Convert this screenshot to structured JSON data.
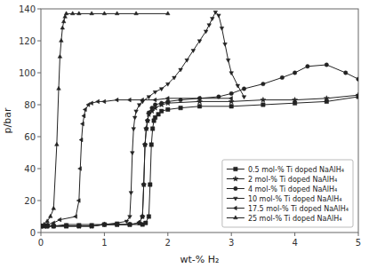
{
  "chart_data": {
    "type": "line",
    "xlabel": "wt-% H₂",
    "ylabel": "p/bar",
    "xlim": [
      0,
      5
    ],
    "ylim": [
      0,
      140
    ],
    "xticks": [
      0,
      1,
      2,
      3,
      4,
      5
    ],
    "yticks": [
      0,
      20,
      40,
      60,
      80,
      100,
      120,
      140
    ],
    "grid": false,
    "legend": "lower right",
    "series": [
      {
        "name": "0.5 mol-% Ti doped NaAlH₄",
        "marker": "square",
        "color": "#222222",
        "x": [
          0.0,
          0.05,
          0.1,
          0.2,
          0.4,
          0.6,
          0.8,
          1.0,
          1.2,
          1.4,
          1.6,
          1.65,
          1.7,
          1.72,
          1.74,
          1.76,
          1.78,
          1.8,
          1.85,
          1.9,
          2.0,
          2.2,
          2.5,
          3.0,
          3.5,
          4.0,
          4.5,
          5.0
        ],
        "values": [
          4,
          4,
          4,
          4,
          4,
          4,
          4,
          5,
          5,
          5,
          5,
          6,
          10,
          30,
          55,
          65,
          70,
          72,
          74,
          76,
          77,
          78,
          79,
          79,
          80,
          81,
          82,
          85
        ]
      },
      {
        "name": "2 mol-% Ti doped NaAlH₄",
        "marker": "star",
        "color": "#222222",
        "x": [
          0.0,
          0.05,
          0.1,
          0.2,
          0.4,
          0.6,
          0.8,
          1.0,
          1.2,
          1.4,
          1.55,
          1.6,
          1.62,
          1.64,
          1.66,
          1.68,
          1.7,
          1.75,
          1.8,
          1.9,
          2.0,
          2.5,
          3.0,
          3.5,
          4.0,
          4.5,
          5.0
        ],
        "values": [
          4,
          4,
          4,
          4,
          4,
          4,
          4,
          5,
          5,
          5,
          6,
          10,
          30,
          55,
          65,
          70,
          74,
          76,
          78,
          80,
          81,
          82,
          82,
          83,
          83,
          84,
          86
        ]
      },
      {
        "name": "4 mol-% Ti doped NaAlH₄",
        "marker": "circle",
        "color": "#222222",
        "x": [
          0.0,
          0.1,
          0.2,
          0.4,
          0.6,
          0.8,
          1.0,
          1.2,
          1.4,
          1.55,
          1.6,
          1.62,
          1.64,
          1.66,
          1.68,
          1.7,
          1.75,
          1.8,
          1.9,
          2.0,
          2.2,
          2.5,
          2.8,
          3.0,
          3.2,
          3.5,
          3.8,
          4.0,
          4.2,
          4.5,
          4.8,
          5.0
        ],
        "values": [
          4,
          4,
          4,
          4,
          4,
          4,
          5,
          5,
          5,
          6,
          10,
          30,
          55,
          65,
          70,
          75,
          78,
          80,
          81,
          82,
          83,
          84,
          85,
          87,
          90,
          93,
          97,
          100,
          104,
          105,
          100,
          96
        ]
      },
      {
        "name": "10 mol-% Ti doped NaAlH₄",
        "marker": "triangle-down",
        "color": "#222222",
        "x": [
          0.0,
          0.1,
          0.2,
          0.4,
          0.6,
          0.8,
          1.0,
          1.2,
          1.35,
          1.4,
          1.42,
          1.44,
          1.46,
          1.48,
          1.5,
          1.55,
          1.6,
          1.7,
          1.8,
          1.9,
          2.0,
          2.1,
          2.2,
          2.3,
          2.4,
          2.5,
          2.6,
          2.65,
          2.7,
          2.75,
          2.8,
          2.85,
          2.9,
          2.95,
          3.0,
          3.1,
          3.2
        ],
        "values": [
          4,
          4,
          4,
          5,
          5,
          5,
          5,
          6,
          7,
          10,
          25,
          50,
          65,
          72,
          76,
          80,
          82,
          85,
          88,
          90,
          93,
          97,
          102,
          108,
          114,
          120,
          126,
          130,
          134,
          138,
          136,
          128,
          118,
          108,
          100,
          92,
          85
        ]
      },
      {
        "name": "17.5 mol-% Ti doped NaAlH₄",
        "marker": "triangle-left",
        "color": "#222222",
        "x": [
          0.0,
          0.05,
          0.1,
          0.2,
          0.3,
          0.55,
          0.6,
          0.62,
          0.64,
          0.66,
          0.68,
          0.7,
          0.75,
          0.8,
          0.9,
          1.0,
          1.2,
          1.4,
          1.6,
          1.8,
          2.0,
          2.5,
          3.0
        ],
        "values": [
          4,
          4,
          5,
          6,
          8,
          10,
          20,
          40,
          58,
          68,
          73,
          77,
          80,
          81,
          82,
          82,
          83,
          83,
          83,
          83,
          84,
          84,
          84
        ]
      },
      {
        "name": "25 mol-% Ti doped NaAlH₄",
        "marker": "triangle-up",
        "color": "#222222",
        "x": [
          0.0,
          0.05,
          0.1,
          0.15,
          0.2,
          0.25,
          0.28,
          0.3,
          0.32,
          0.34,
          0.36,
          0.38,
          0.4,
          0.5,
          0.6,
          0.8,
          1.0,
          1.2,
          1.5,
          2.0
        ],
        "values": [
          4,
          5,
          7,
          10,
          15,
          55,
          90,
          110,
          120,
          128,
          132,
          135,
          137,
          137,
          137,
          137,
          137,
          137,
          137,
          137
        ]
      }
    ]
  }
}
